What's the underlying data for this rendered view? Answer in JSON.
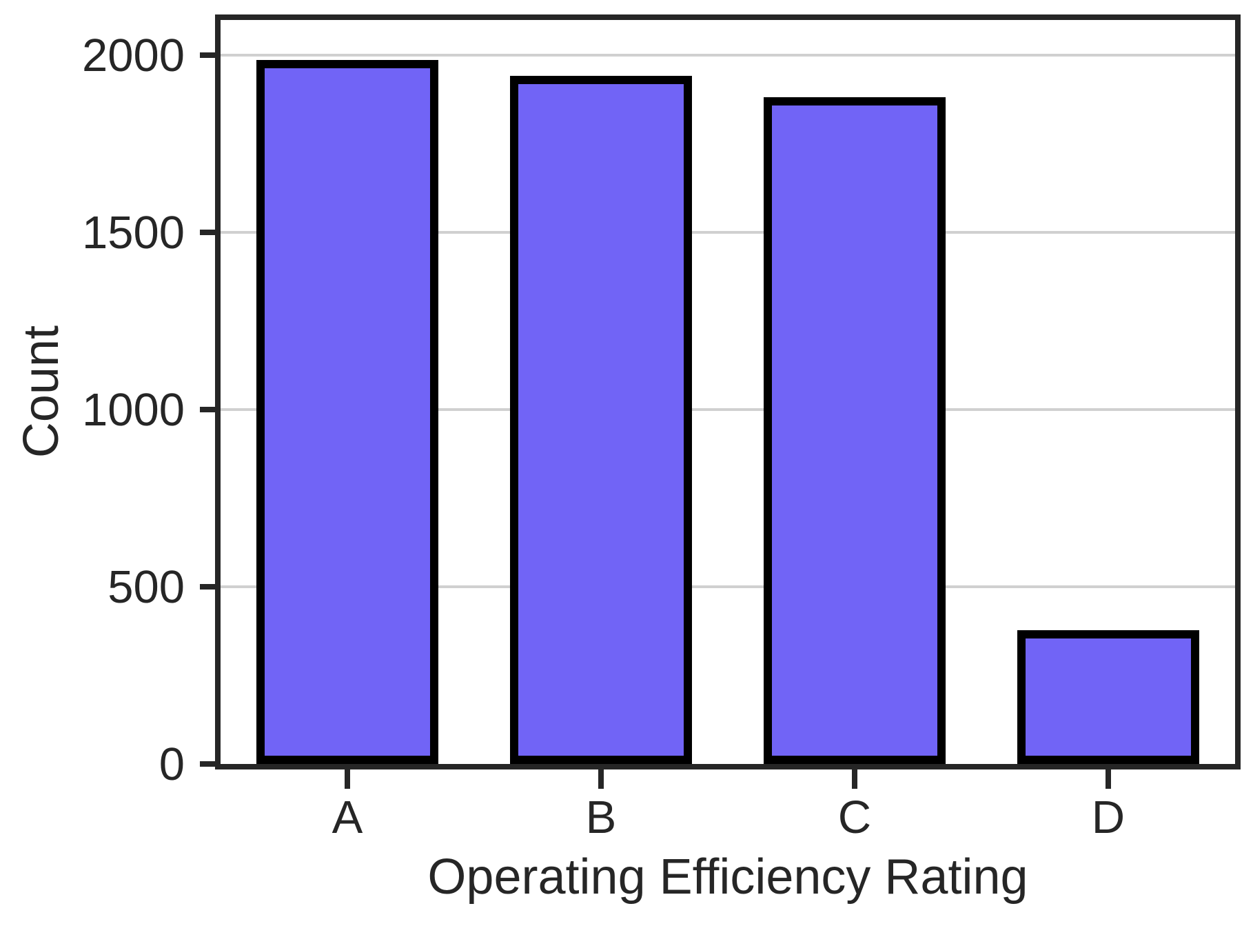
{
  "chart_data": {
    "type": "bar",
    "categories": [
      "A",
      "B",
      "C",
      "D"
    ],
    "values": [
      1975,
      1930,
      1870,
      365
    ],
    "title": "",
    "xlabel": "Operating Efficiency Rating",
    "ylabel": "Count",
    "ylim": [
      0,
      2100
    ],
    "yticks": [
      0,
      500,
      1000,
      1500,
      2000
    ],
    "grid": "horizontal-only",
    "legend": "none",
    "colors": {
      "bar_fill": "#7164F6",
      "bar_edge": "#000000",
      "axis_and_text": "#262626",
      "gridline": "#d0d0d0",
      "background": "#ffffff"
    }
  }
}
